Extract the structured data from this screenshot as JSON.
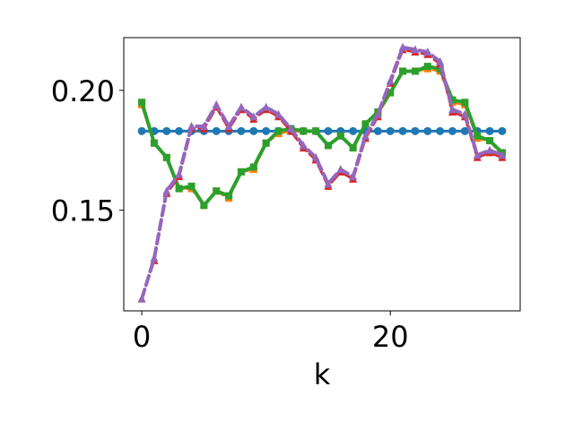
{
  "chart_data": {
    "type": "line",
    "title": "",
    "xlabel": "k",
    "ylabel": "",
    "xlim": [
      -1.45,
      30.45
    ],
    "ylim": [
      0.108,
      0.222
    ],
    "xticks": [
      0,
      20
    ],
    "xtick_labels": [
      "0",
      "20"
    ],
    "yticks": [
      0.15,
      0.2
    ],
    "ytick_labels": [
      "0.15",
      "0.20"
    ],
    "grid": false,
    "legend": "none",
    "x": [
      0,
      1,
      2,
      3,
      4,
      5,
      6,
      7,
      8,
      9,
      10,
      11,
      12,
      13,
      14,
      15,
      16,
      17,
      18,
      19,
      20,
      21,
      22,
      23,
      24,
      25,
      26,
      27,
      28,
      29
    ],
    "series": [
      {
        "color": "#1f77b4",
        "marker": "circle",
        "dash": "solid",
        "width": 3,
        "values": [
          0.183,
          0.183,
          0.183,
          0.183,
          0.183,
          0.183,
          0.183,
          0.183,
          0.183,
          0.183,
          0.183,
          0.183,
          0.183,
          0.183,
          0.183,
          0.183,
          0.183,
          0.183,
          0.183,
          0.183,
          0.183,
          0.183,
          0.183,
          0.183,
          0.183,
          0.183,
          0.183,
          0.183,
          0.183,
          0.183
        ]
      },
      {
        "color": "#ff7f0e",
        "marker": "square",
        "dash": "dashed",
        "width": 3,
        "values": [
          0.194,
          0.178,
          0.172,
          0.159,
          0.159,
          0.152,
          0.158,
          0.155,
          0.166,
          0.167,
          0.178,
          0.182,
          0.183,
          0.183,
          0.183,
          0.177,
          0.181,
          0.176,
          0.186,
          0.19,
          0.199,
          0.208,
          0.208,
          0.209,
          0.208,
          0.195,
          0.194,
          0.18,
          0.179,
          0.173
        ]
      },
      {
        "color": "#2ca02c",
        "marker": "square",
        "dash": "solid",
        "width": 4,
        "values": [
          0.195,
          0.178,
          0.172,
          0.159,
          0.16,
          0.152,
          0.158,
          0.156,
          0.166,
          0.168,
          0.178,
          0.183,
          0.184,
          0.183,
          0.183,
          0.177,
          0.181,
          0.176,
          0.186,
          0.191,
          0.199,
          0.208,
          0.208,
          0.21,
          0.209,
          0.196,
          0.195,
          0.181,
          0.179,
          0.174
        ]
      },
      {
        "color": "#d62728",
        "marker": "triangle",
        "dash": "dashed",
        "width": 3,
        "values": [
          0.113,
          0.129,
          0.157,
          0.164,
          0.184,
          0.184,
          0.193,
          0.184,
          0.192,
          0.188,
          0.192,
          0.189,
          0.183,
          0.176,
          0.171,
          0.16,
          0.166,
          0.163,
          0.18,
          0.189,
          0.203,
          0.217,
          0.216,
          0.215,
          0.211,
          0.191,
          0.189,
          0.172,
          0.174,
          0.172
        ]
      },
      {
        "color": "#9467bd",
        "marker": "triangle",
        "dash": "dashed",
        "width": 4,
        "values": [
          0.113,
          0.13,
          0.158,
          0.165,
          0.185,
          0.185,
          0.194,
          0.185,
          0.193,
          0.189,
          0.193,
          0.19,
          0.184,
          0.177,
          0.172,
          0.161,
          0.167,
          0.164,
          0.181,
          0.19,
          0.204,
          0.218,
          0.217,
          0.216,
          0.212,
          0.192,
          0.19,
          0.173,
          0.175,
          0.173
        ]
      }
    ]
  }
}
